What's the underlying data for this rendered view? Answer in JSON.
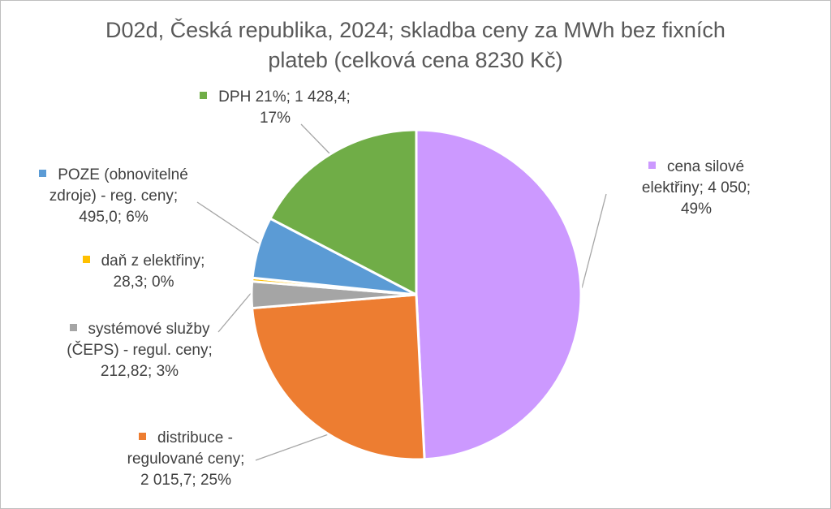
{
  "chart_data": {
    "type": "pie",
    "title": "D02d, Česká republika, 2024; skladba ceny za MWh bez fixních\nplateb (celková cena 8230 Kč)",
    "series": [
      {
        "name": "",
        "slices": [
          {
            "category": "cena silové elektřiny",
            "value": 4050,
            "percent": 49,
            "color": "#CC99FF",
            "label_lines": [
              "cena silové",
              "elektřiny; 4 050;",
              "49%"
            ]
          },
          {
            "category": "distribuce - regulované ceny",
            "value": 2015.7,
            "percent": 25,
            "color": "#ED7D31",
            "label_lines": [
              "distribuce -",
              "regulované ceny;",
              "2 015,7; 25%"
            ]
          },
          {
            "category": "systémové služby (ČEPS) - regul. ceny",
            "value": 212.82,
            "percent": 3,
            "color": "#A5A5A5",
            "label_lines": [
              "systémové služby",
              "(ČEPS) - regul. ceny;",
              "212,82; 3%"
            ]
          },
          {
            "category": "daň z elektřiny",
            "value": 28.3,
            "percent": 0,
            "color": "#FFC000",
            "label_lines": [
              "daň z elektřiny;",
              "28,3; 0%"
            ]
          },
          {
            "category": "POZE (obnovitelné zdroje) - reg. ceny",
            "value": 495.0,
            "percent": 6,
            "color": "#5B9BD5",
            "label_lines": [
              "POZE (obnovitelné",
              "zdroje) - reg. ceny;",
              "495,0; 6%"
            ]
          },
          {
            "category": "DPH 21%",
            "value": 1428.4,
            "percent": 17,
            "color": "#70AD47",
            "label_lines": [
              "DPH 21%; 1 428,4;",
              "17%"
            ]
          }
        ]
      }
    ],
    "legend": "none",
    "data_labels": "outside with leader lines"
  }
}
